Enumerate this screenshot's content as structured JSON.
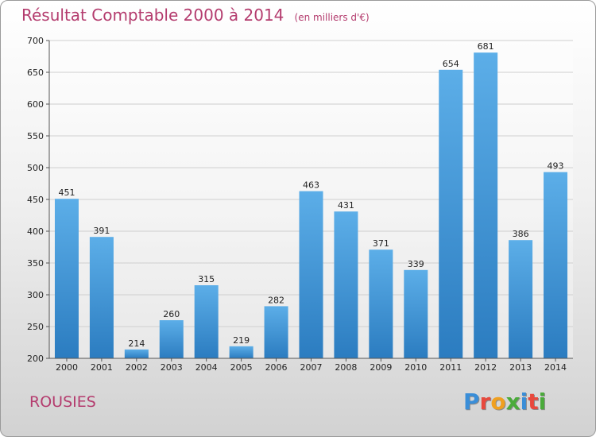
{
  "chart_data": {
    "type": "bar",
    "title": "Résultat Comptable 2000 à 2014",
    "subtitle": "(en milliers d'€)",
    "categories": [
      "2000",
      "2001",
      "2002",
      "2003",
      "2004",
      "2005",
      "2006",
      "2007",
      "2008",
      "2009",
      "2010",
      "2011",
      "2012",
      "2013",
      "2014"
    ],
    "values": [
      451,
      391,
      214,
      260,
      315,
      219,
      282,
      463,
      431,
      371,
      339,
      654,
      681,
      386,
      493
    ],
    "ylim": [
      200,
      700
    ],
    "yticks": [
      200,
      250,
      300,
      350,
      400,
      450,
      500,
      550,
      600,
      650,
      700
    ],
    "grid": true,
    "bar_color": "#3d94d6"
  },
  "footer": {
    "commune": "ROUSIES",
    "logo_text": "Proxiti",
    "logo_colors": [
      "#3a8ed8",
      "#e8483c",
      "#f0a020",
      "#4aab3a",
      "#3a8ed8",
      "#e8483c",
      "#4aab3a"
    ]
  }
}
